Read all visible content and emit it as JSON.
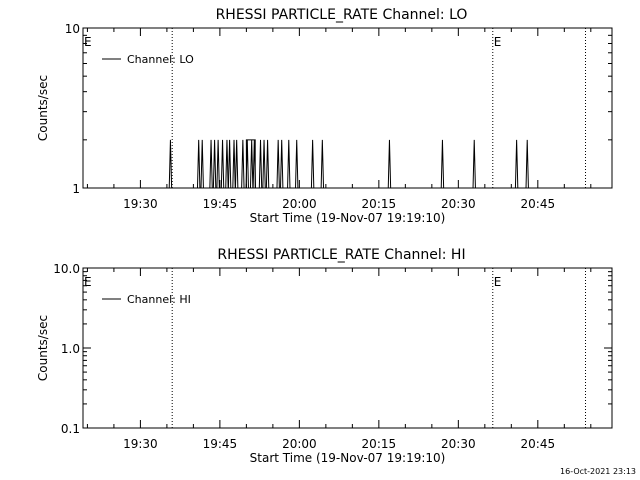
{
  "footer": {
    "timestamp": "16-Oct-2021 23:13"
  },
  "chart_data": [
    {
      "type": "line",
      "title": "RHESSI PARTICLE_RATE Channel: LO",
      "xlabel": "Start Time (19-Nov-07 19:19:10)",
      "ylabel": "Counts/sec",
      "yscale": "log",
      "ylim": [
        1,
        10
      ],
      "xlim": [
        "19:19:10",
        "20:59:00"
      ],
      "x_ticks": [
        "19:30",
        "19:45",
        "20:00",
        "20:15",
        "20:30",
        "20:45"
      ],
      "y_ticks": [
        "1",
        "10"
      ],
      "legend": {
        "label": "Channel: LO",
        "position": "top-left"
      },
      "event_markers": [
        {
          "time": "19:36:00",
          "label": ""
        },
        {
          "time": "20:36:30",
          "label": "E"
        },
        {
          "time": "20:54:00",
          "label": ""
        }
      ],
      "start_marker_label": "E",
      "spike_value": 2,
      "spike_times": [
        "19:35:40",
        "19:41:00",
        "19:41:40",
        "19:43:20",
        "19:44:00",
        "19:44:40",
        "19:45:30",
        "19:46:20",
        "19:46:50",
        "19:47:40",
        "19:48:10",
        "19:49:20",
        "19:50:10",
        "19:51:00",
        "19:51:30",
        "19:52:40",
        "19:53:20",
        "19:54:00",
        "19:56:00",
        "19:56:40",
        "19:58:00",
        "19:59:30",
        "20:02:30",
        "20:04:20",
        "20:17:00",
        "20:27:00",
        "20:33:00",
        "20:41:00",
        "20:43:00"
      ],
      "plateaus": [
        {
          "start": "19:50:00",
          "end": "19:51:40",
          "value": 2
        }
      ]
    },
    {
      "type": "line",
      "title": "RHESSI PARTICLE_RATE Channel: HI",
      "xlabel": "Start Time (19-Nov-07 19:19:10)",
      "ylabel": "Counts/sec",
      "yscale": "log",
      "ylim": [
        0.1,
        10
      ],
      "xlim": [
        "19:19:10",
        "20:59:00"
      ],
      "x_ticks": [
        "19:30",
        "19:45",
        "20:00",
        "20:15",
        "20:30",
        "20:45"
      ],
      "y_ticks": [
        "0.1",
        "1.0",
        "10.0"
      ],
      "legend": {
        "label": "Channel: HI",
        "position": "top-left"
      },
      "event_markers": [
        {
          "time": "19:36:00",
          "label": ""
        },
        {
          "time": "20:36:30",
          "label": "E"
        },
        {
          "time": "20:54:00",
          "label": ""
        }
      ],
      "start_marker_label": "E",
      "spike_value": 2,
      "spike_times": [],
      "plateaus": []
    }
  ]
}
